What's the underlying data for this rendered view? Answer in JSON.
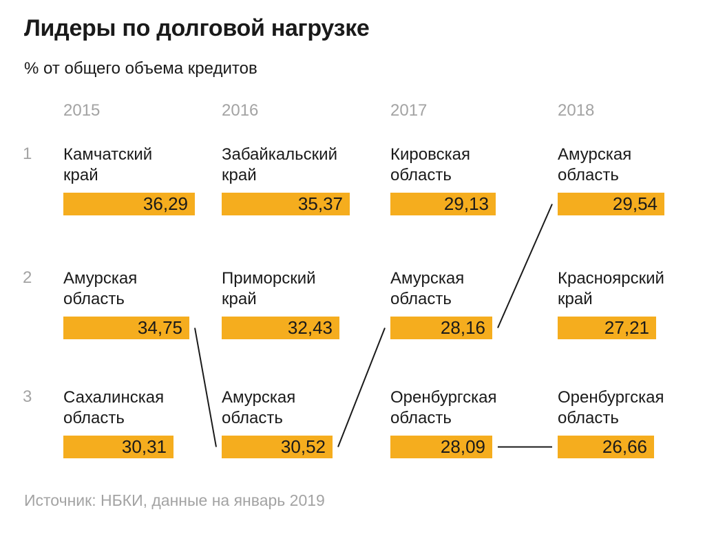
{
  "header": {
    "title": "Лидеры по долговой нагрузке",
    "subtitle": "% от общего объема кредитов"
  },
  "footer": {
    "source": "Источник: НБКИ, данные на январь 2019"
  },
  "colors": {
    "bar": "#f5ad1e",
    "text_dark": "#1a1a1a",
    "text_gray": "#a3a3a3",
    "connector": "#1a1a1a"
  },
  "chart_data": {
    "type": "bar",
    "title": "Лидеры по долговой нагрузке",
    "unit_label": "% от общего объема кредитов",
    "legend_position": "none",
    "grid": false,
    "value_range": [
      0,
      36.29
    ],
    "years": [
      "2015",
      "2016",
      "2017",
      "2018"
    ],
    "ranks": [
      "1",
      "2",
      "3"
    ],
    "columns": [
      {
        "year": "2015",
        "entries": [
          {
            "rank": "1",
            "region": "Камчатский край",
            "value": 36.29,
            "value_display": "36,29"
          },
          {
            "rank": "2",
            "region": "Амурская область",
            "value": 34.75,
            "value_display": "34,75"
          },
          {
            "rank": "3",
            "region": "Сахалинская область",
            "value": 30.31,
            "value_display": "30,31"
          }
        ]
      },
      {
        "year": "2016",
        "entries": [
          {
            "rank": "1",
            "region": "Забайкальский край",
            "value": 35.37,
            "value_display": "35,37"
          },
          {
            "rank": "2",
            "region": "Приморский край",
            "value": 32.43,
            "value_display": "32,43"
          },
          {
            "rank": "3",
            "region": "Амурская область",
            "value": 30.52,
            "value_display": "30,52"
          }
        ]
      },
      {
        "year": "2017",
        "entries": [
          {
            "rank": "1",
            "region": "Кировская область",
            "value": 29.13,
            "value_display": "29,13"
          },
          {
            "rank": "2",
            "region": "Амурская область",
            "value": 28.16,
            "value_display": "28,16"
          },
          {
            "rank": "3",
            "region": "Оренбургская область",
            "value": 28.09,
            "value_display": "28,09"
          }
        ]
      },
      {
        "year": "2018",
        "entries": [
          {
            "rank": "1",
            "region": "Амурская область",
            "value": 29.54,
            "value_display": "29,54"
          },
          {
            "rank": "2",
            "region": "Красноярский край",
            "value": 27.21,
            "value_display": "27,21"
          },
          {
            "rank": "3",
            "region": "Оренбургская область",
            "value": 26.66,
            "value_display": "26,66"
          }
        ]
      }
    ],
    "connections": [
      {
        "region": "Амурская область",
        "from": {
          "col": 0,
          "row": 1
        },
        "to": {
          "col": 1,
          "row": 2
        }
      },
      {
        "region": "Амурская область",
        "from": {
          "col": 1,
          "row": 2
        },
        "to": {
          "col": 2,
          "row": 1
        }
      },
      {
        "region": "Амурская область",
        "from": {
          "col": 2,
          "row": 1
        },
        "to": {
          "col": 3,
          "row": 0
        }
      },
      {
        "region": "Оренбургская область",
        "from": {
          "col": 2,
          "row": 2
        },
        "to": {
          "col": 3,
          "row": 2
        }
      }
    ]
  }
}
